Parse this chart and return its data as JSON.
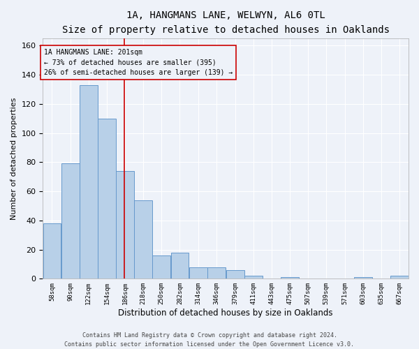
{
  "title1": "1A, HANGMANS LANE, WELWYN, AL6 0TL",
  "title2": "Size of property relative to detached houses in Oaklands",
  "xlabel": "Distribution of detached houses by size in Oaklands",
  "ylabel": "Number of detached properties",
  "footer1": "Contains HM Land Registry data © Crown copyright and database right 2024.",
  "footer2": "Contains public sector information licensed under the Open Government Licence v3.0.",
  "annotation_line1": "1A HANGMANS LANE: 201sqm",
  "annotation_line2": "← 73% of detached houses are smaller (395)",
  "annotation_line3": "26% of semi-detached houses are larger (139) →",
  "property_size": 201,
  "bins": [
    58,
    90,
    122,
    154,
    186,
    218,
    250,
    282,
    314,
    346,
    379,
    411,
    443,
    475,
    507,
    539,
    571,
    603,
    635,
    667,
    699
  ],
  "values": [
    38,
    79,
    133,
    110,
    74,
    54,
    16,
    18,
    8,
    8,
    6,
    2,
    0,
    1,
    0,
    0,
    0,
    1,
    0,
    2
  ],
  "bar_color": "#b8d0e8",
  "bar_edge_color": "#6699cc",
  "line_color": "#cc0000",
  "ylim": [
    0,
    165
  ],
  "yticks": [
    0,
    20,
    40,
    60,
    80,
    100,
    120,
    140,
    160
  ],
  "bg_color": "#eef2f9",
  "grid_color": "#ffffff",
  "annotation_box_color": "#cc0000",
  "title1_fontsize": 10,
  "title2_fontsize": 8.5,
  "ylabel_fontsize": 8,
  "xlabel_fontsize": 8.5,
  "footer_fontsize": 6,
  "ytick_fontsize": 8,
  "xtick_fontsize": 6.5
}
